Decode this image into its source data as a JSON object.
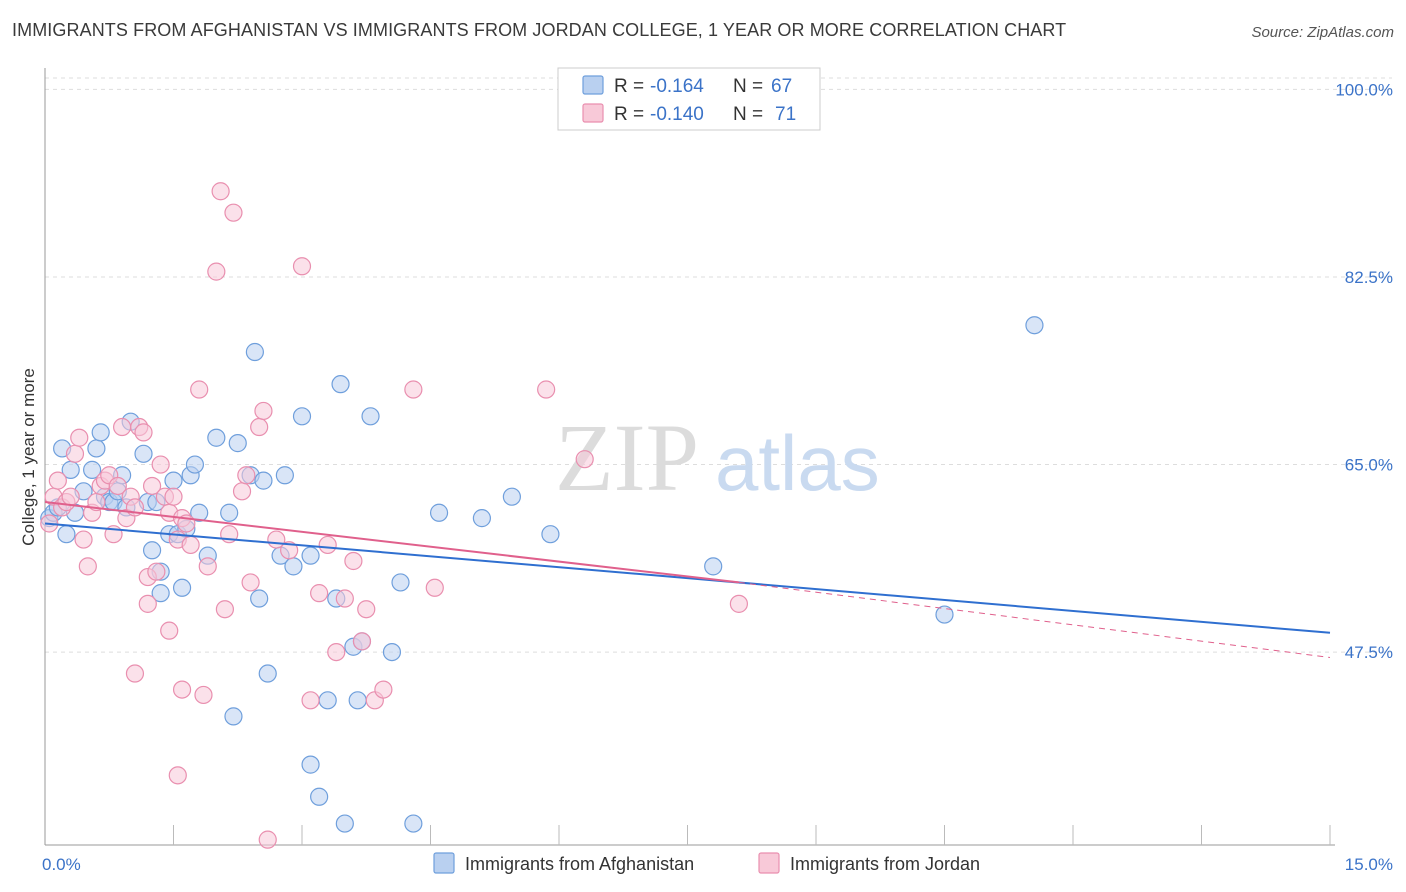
{
  "title": "IMMIGRANTS FROM AFGHANISTAN VS IMMIGRANTS FROM JORDAN COLLEGE, 1 YEAR OR MORE CORRELATION CHART",
  "source": "Source: ZipAtlas.com",
  "watermark": {
    "zip": "ZIP",
    "atlas": "atlas"
  },
  "colors": {
    "afghanistan_fill": "#b9d0f0",
    "afghanistan_stroke": "#6f9fdc",
    "afghanistan_line": "#2f6fd0",
    "jordan_fill": "#f8c9d8",
    "jordan_stroke": "#e98faf",
    "jordan_line": "#e0608c",
    "grid": "#dddddd",
    "tick_text": "#3b73c8"
  },
  "legend": {
    "rows": [
      {
        "r_label": "R =",
        "r_value": "-0.164",
        "n_label": "N =",
        "n_value": "67"
      },
      {
        "r_label": "R =",
        "r_value": "-0.140",
        "n_label": "N =",
        "n_value": "71"
      }
    ]
  },
  "chart_data": {
    "type": "scatter",
    "title": "IMMIGRANTS FROM AFGHANISTAN VS IMMIGRANTS FROM JORDAN COLLEGE, 1 YEAR OR MORE CORRELATION CHART",
    "xlabel": "",
    "ylabel": "College, 1 year or more",
    "xlim": [
      0,
      15
    ],
    "ylim": [
      29.5,
      102
    ],
    "x_tick_labels": [
      "0.0%",
      "15.0%"
    ],
    "y_ticks": [
      47.5,
      65.0,
      82.5,
      100.0
    ],
    "y_tick_labels": [
      "47.5%",
      "65.0%",
      "82.5%",
      "100.0%"
    ],
    "grid": true,
    "series": [
      {
        "name": "Immigrants from Afghanistan",
        "r": -0.164,
        "n": 67,
        "trend": {
          "x0": 0,
          "y0": 59.5,
          "x1": 15,
          "y1": 49.3
        },
        "points": [
          [
            0.05,
            60.0
          ],
          [
            0.1,
            60.5
          ],
          [
            0.15,
            61.0
          ],
          [
            0.2,
            66.5
          ],
          [
            0.25,
            58.5
          ],
          [
            0.3,
            64.5
          ],
          [
            0.35,
            60.5
          ],
          [
            0.45,
            62.5
          ],
          [
            0.55,
            64.5
          ],
          [
            0.6,
            66.5
          ],
          [
            0.65,
            68.0
          ],
          [
            0.7,
            62.0
          ],
          [
            0.75,
            61.5
          ],
          [
            0.8,
            61.5
          ],
          [
            0.85,
            62.5
          ],
          [
            0.9,
            64.0
          ],
          [
            0.95,
            61.0
          ],
          [
            1.0,
            69.0
          ],
          [
            1.15,
            66.0
          ],
          [
            1.2,
            61.5
          ],
          [
            1.25,
            57.0
          ],
          [
            1.3,
            61.5
          ],
          [
            1.35,
            53.0
          ],
          [
            1.35,
            55.0
          ],
          [
            1.45,
            58.5
          ],
          [
            1.5,
            63.5
          ],
          [
            1.55,
            58.5
          ],
          [
            1.6,
            53.5
          ],
          [
            1.65,
            59.0
          ],
          [
            1.7,
            64.0
          ],
          [
            1.75,
            65.0
          ],
          [
            1.8,
            60.5
          ],
          [
            1.9,
            56.5
          ],
          [
            2.0,
            67.5
          ],
          [
            2.15,
            60.5
          ],
          [
            2.2,
            41.5
          ],
          [
            2.25,
            67.0
          ],
          [
            2.4,
            64.0
          ],
          [
            2.45,
            75.5
          ],
          [
            2.5,
            52.5
          ],
          [
            2.55,
            63.5
          ],
          [
            2.6,
            45.5
          ],
          [
            2.75,
            56.5
          ],
          [
            2.8,
            64.0
          ],
          [
            2.9,
            55.5
          ],
          [
            3.0,
            69.5
          ],
          [
            3.1,
            56.5
          ],
          [
            3.1,
            37.0
          ],
          [
            3.2,
            34.0
          ],
          [
            3.3,
            43.0
          ],
          [
            3.4,
            52.5
          ],
          [
            3.45,
            72.5
          ],
          [
            3.5,
            31.5
          ],
          [
            3.6,
            48.0
          ],
          [
            3.65,
            43.0
          ],
          [
            3.7,
            48.5
          ],
          [
            3.8,
            69.5
          ],
          [
            4.05,
            47.5
          ],
          [
            4.15,
            54.0
          ],
          [
            4.3,
            31.5
          ],
          [
            4.6,
            60.5
          ],
          [
            5.1,
            60.0
          ],
          [
            5.45,
            62.0
          ],
          [
            5.9,
            58.5
          ],
          [
            7.8,
            55.5
          ],
          [
            10.5,
            51.0
          ],
          [
            11.55,
            78.0
          ]
        ]
      },
      {
        "name": "Immigrants from Jordan",
        "r": -0.14,
        "n": 71,
        "trend": {
          "x0": 0,
          "y0": 61.5,
          "x1": 8.1,
          "y1": 54.0,
          "dashed_x0": 8.1,
          "dashed_y0": 54.0,
          "dashed_x1": 15,
          "dashed_y1": 47.0
        },
        "points": [
          [
            0.05,
            59.5
          ],
          [
            0.1,
            62.0
          ],
          [
            0.15,
            63.5
          ],
          [
            0.2,
            61.0
          ],
          [
            0.25,
            61.5
          ],
          [
            0.3,
            62.0
          ],
          [
            0.35,
            66.0
          ],
          [
            0.4,
            67.5
          ],
          [
            0.45,
            58.0
          ],
          [
            0.5,
            55.5
          ],
          [
            0.55,
            60.5
          ],
          [
            0.6,
            61.5
          ],
          [
            0.65,
            63.0
          ],
          [
            0.7,
            63.5
          ],
          [
            0.75,
            64.0
          ],
          [
            0.8,
            58.5
          ],
          [
            0.85,
            63.0
          ],
          [
            0.9,
            68.5
          ],
          [
            0.95,
            60.0
          ],
          [
            1.0,
            62.0
          ],
          [
            1.05,
            61.0
          ],
          [
            1.1,
            68.5
          ],
          [
            1.15,
            68.0
          ],
          [
            1.2,
            54.5
          ],
          [
            1.25,
            63.0
          ],
          [
            1.3,
            55.0
          ],
          [
            1.35,
            65.0
          ],
          [
            1.4,
            62.0
          ],
          [
            1.45,
            60.5
          ],
          [
            1.5,
            62.0
          ],
          [
            1.55,
            58.0
          ],
          [
            1.6,
            60.0
          ],
          [
            1.65,
            59.5
          ],
          [
            1.7,
            57.5
          ],
          [
            1.8,
            72.0
          ],
          [
            1.9,
            55.5
          ],
          [
            2.0,
            83.0
          ],
          [
            2.05,
            90.5
          ],
          [
            2.1,
            51.5
          ],
          [
            2.15,
            58.5
          ],
          [
            2.2,
            88.5
          ],
          [
            2.3,
            62.5
          ],
          [
            2.35,
            64.0
          ],
          [
            2.4,
            54.0
          ],
          [
            2.5,
            68.5
          ],
          [
            2.55,
            70.0
          ],
          [
            2.6,
            30.0
          ],
          [
            2.7,
            58.0
          ],
          [
            2.85,
            57.0
          ],
          [
            3.0,
            83.5
          ],
          [
            3.1,
            43.0
          ],
          [
            3.2,
            53.0
          ],
          [
            3.3,
            57.5
          ],
          [
            3.4,
            47.5
          ],
          [
            3.5,
            52.5
          ],
          [
            3.6,
            56.0
          ],
          [
            3.7,
            48.5
          ],
          [
            3.75,
            51.5
          ],
          [
            3.85,
            43.0
          ],
          [
            3.95,
            44.0
          ],
          [
            4.3,
            72.0
          ],
          [
            4.55,
            53.5
          ],
          [
            5.85,
            72.0
          ],
          [
            6.3,
            65.5
          ],
          [
            8.1,
            52.0
          ],
          [
            1.55,
            36.0
          ],
          [
            1.85,
            43.5
          ],
          [
            1.6,
            44.0
          ],
          [
            1.45,
            49.5
          ],
          [
            1.05,
            45.5
          ],
          [
            1.2,
            52.0
          ]
        ]
      }
    ]
  },
  "bottom_legend": [
    {
      "label": "Immigrants from Afghanistan"
    },
    {
      "label": "Immigrants from Jordan"
    }
  ]
}
